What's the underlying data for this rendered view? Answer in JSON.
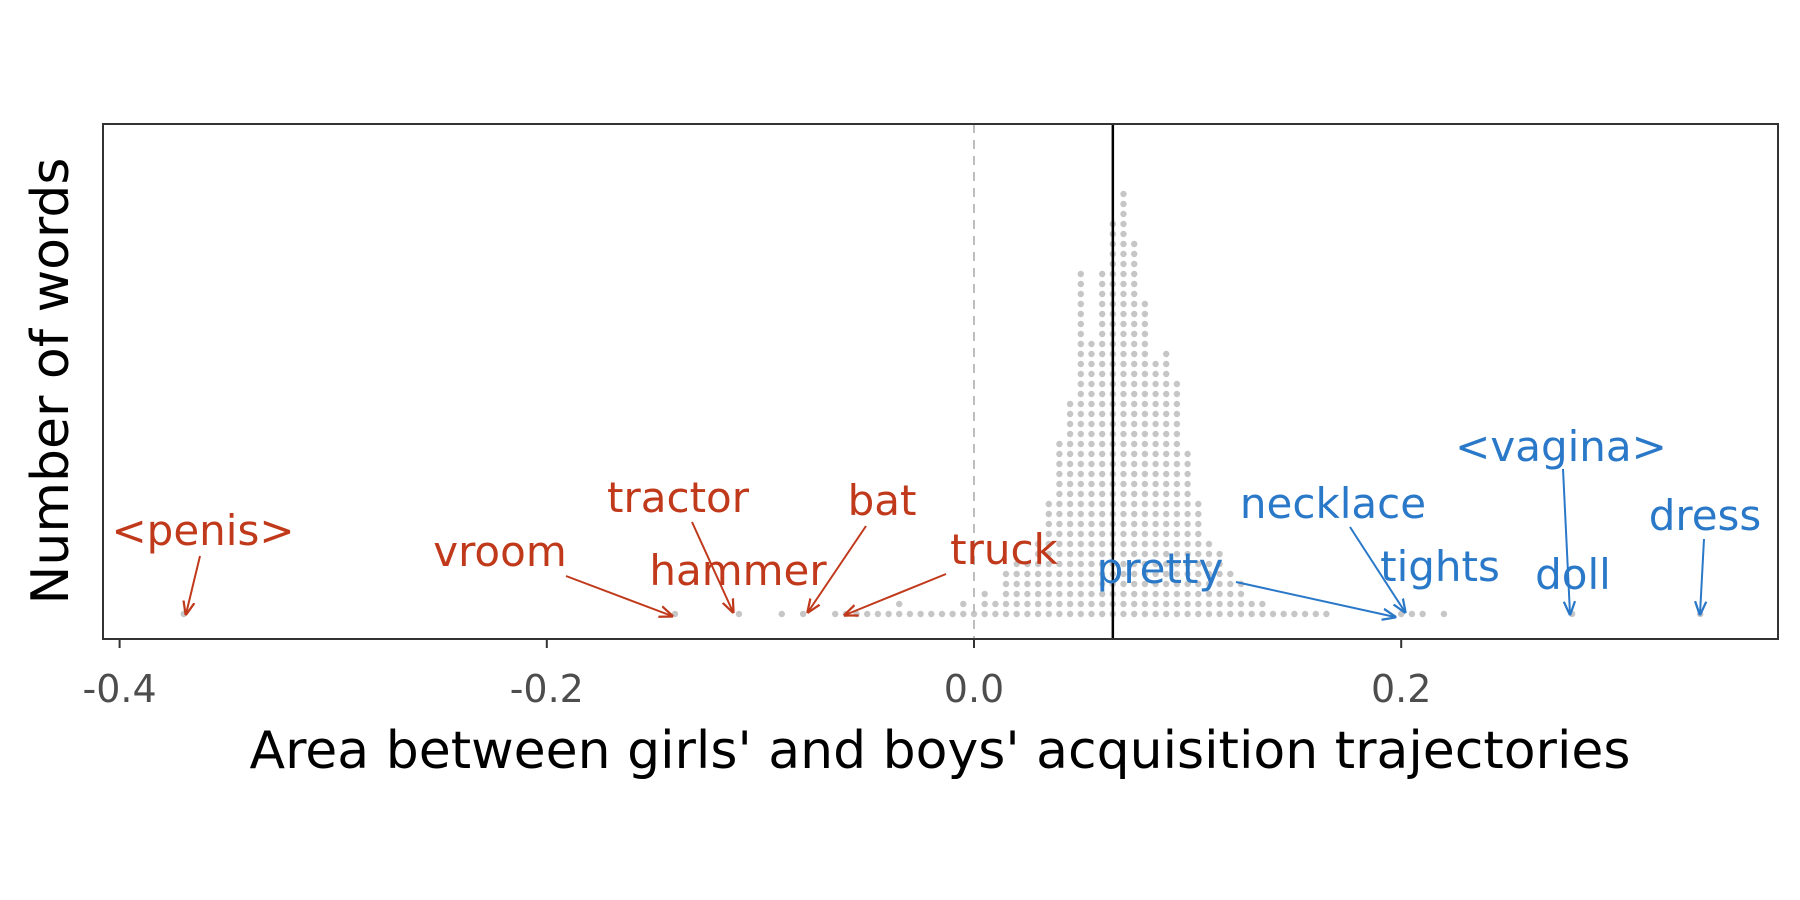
{
  "chart_data": {
    "type": "dot histogram",
    "xlabel": "Area between girls' and boys' acquisition trajectories",
    "ylabel": "Number of words",
    "xlim": [
      -0.41,
      0.38
    ],
    "xticks": [
      -0.4,
      -0.2,
      0.0,
      0.2
    ],
    "xtick_labels": [
      "-0.4",
      "-0.2",
      "0.0",
      "0.2"
    ],
    "zero_line": 0.0,
    "mean_line": 0.065,
    "grid": false,
    "bin_width": 0.005,
    "bins": [
      {
        "x": -0.37,
        "count": 1
      },
      {
        "x": -0.14,
        "count": 1
      },
      {
        "x": -0.11,
        "count": 1
      },
      {
        "x": -0.09,
        "count": 1
      },
      {
        "x": -0.08,
        "count": 1
      },
      {
        "x": -0.065,
        "count": 1
      },
      {
        "x": -0.06,
        "count": 1
      },
      {
        "x": -0.055,
        "count": 1
      },
      {
        "x": -0.05,
        "count": 1
      },
      {
        "x": -0.045,
        "count": 1
      },
      {
        "x": -0.04,
        "count": 1
      },
      {
        "x": -0.035,
        "count": 2
      },
      {
        "x": -0.03,
        "count": 1
      },
      {
        "x": -0.025,
        "count": 1
      },
      {
        "x": -0.02,
        "count": 1
      },
      {
        "x": -0.015,
        "count": 1
      },
      {
        "x": -0.01,
        "count": 1
      },
      {
        "x": -0.005,
        "count": 2
      },
      {
        "x": 0.0,
        "count": 1
      },
      {
        "x": 0.005,
        "count": 3
      },
      {
        "x": 0.01,
        "count": 2
      },
      {
        "x": 0.015,
        "count": 5
      },
      {
        "x": 0.02,
        "count": 6
      },
      {
        "x": 0.025,
        "count": 6
      },
      {
        "x": 0.03,
        "count": 8
      },
      {
        "x": 0.035,
        "count": 12
      },
      {
        "x": 0.04,
        "count": 18
      },
      {
        "x": 0.045,
        "count": 22
      },
      {
        "x": 0.05,
        "count": 35
      },
      {
        "x": 0.055,
        "count": 28
      },
      {
        "x": 0.06,
        "count": 35
      },
      {
        "x": 0.065,
        "count": 40
      },
      {
        "x": 0.07,
        "count": 43
      },
      {
        "x": 0.075,
        "count": 38
      },
      {
        "x": 0.08,
        "count": 32
      },
      {
        "x": 0.085,
        "count": 26
      },
      {
        "x": 0.09,
        "count": 27
      },
      {
        "x": 0.095,
        "count": 24
      },
      {
        "x": 0.1,
        "count": 17
      },
      {
        "x": 0.105,
        "count": 12
      },
      {
        "x": 0.11,
        "count": 8
      },
      {
        "x": 0.115,
        "count": 7
      },
      {
        "x": 0.12,
        "count": 5
      },
      {
        "x": 0.125,
        "count": 4
      },
      {
        "x": 0.13,
        "count": 2
      },
      {
        "x": 0.135,
        "count": 2
      },
      {
        "x": 0.14,
        "count": 1
      },
      {
        "x": 0.145,
        "count": 1
      },
      {
        "x": 0.15,
        "count": 1
      },
      {
        "x": 0.155,
        "count": 1
      },
      {
        "x": 0.16,
        "count": 1
      },
      {
        "x": 0.165,
        "count": 1
      },
      {
        "x": 0.2,
        "count": 1
      },
      {
        "x": 0.205,
        "count": 1
      },
      {
        "x": 0.21,
        "count": 1
      },
      {
        "x": 0.22,
        "count": 1
      },
      {
        "x": 0.28,
        "count": 1
      },
      {
        "x": 0.34,
        "count": 1
      }
    ],
    "annotations": [
      {
        "label": "<penis>",
        "x": -0.37,
        "group": "boys"
      },
      {
        "label": "vroom",
        "x": -0.14,
        "group": "boys"
      },
      {
        "label": "tractor",
        "x": -0.11,
        "group": "boys"
      },
      {
        "label": "hammer",
        "x": -0.11,
        "group": "boys"
      },
      {
        "label": "bat",
        "x": -0.08,
        "group": "boys"
      },
      {
        "label": "truck",
        "x": -0.06,
        "group": "boys"
      },
      {
        "label": "pretty",
        "x": 0.2,
        "group": "girls"
      },
      {
        "label": "necklace",
        "x": 0.205,
        "group": "girls"
      },
      {
        "label": "tights",
        "x": 0.21,
        "group": "girls"
      },
      {
        "label": "<vagina>",
        "x": 0.28,
        "group": "girls"
      },
      {
        "label": "doll",
        "x": 0.28,
        "group": "girls"
      },
      {
        "label": "dress",
        "x": 0.34,
        "group": "girls"
      }
    ],
    "colors": {
      "boys": "#c0391b",
      "girls": "#2a78c8",
      "dots": "#c6c6c6",
      "mean_line": "#000000",
      "zero_line": "#bdbdbd"
    }
  }
}
